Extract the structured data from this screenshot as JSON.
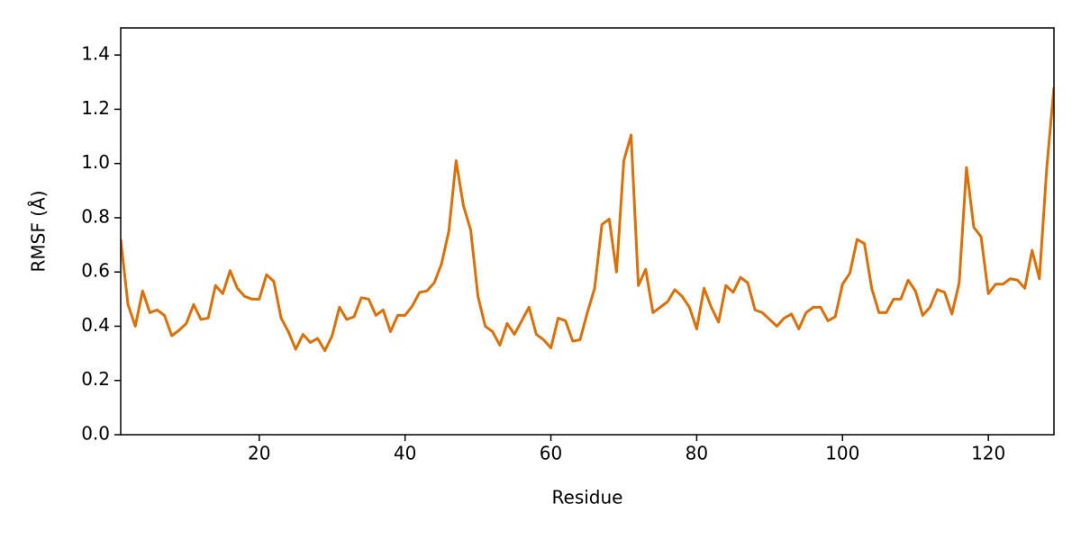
{
  "chart_data": {
    "type": "line",
    "xlabel": "Residue",
    "ylabel": "RMSF (Å)",
    "color": "#d97008",
    "x": [
      1,
      2,
      3,
      4,
      5,
      6,
      7,
      8,
      9,
      10,
      11,
      12,
      13,
      14,
      15,
      16,
      17,
      18,
      19,
      20,
      21,
      22,
      23,
      24,
      25,
      26,
      27,
      28,
      29,
      30,
      31,
      32,
      33,
      34,
      35,
      36,
      37,
      38,
      39,
      40,
      41,
      42,
      43,
      44,
      45,
      46,
      47,
      48,
      49,
      50,
      51,
      52,
      53,
      54,
      55,
      56,
      57,
      58,
      59,
      60,
      61,
      62,
      63,
      64,
      65,
      66,
      67,
      68,
      69,
      70,
      71,
      72,
      73,
      74,
      75,
      76,
      77,
      78,
      79,
      80,
      81,
      82,
      83,
      84,
      85,
      86,
      87,
      88,
      89,
      90,
      91,
      92,
      93,
      94,
      95,
      96,
      97,
      98,
      99,
      100,
      101,
      102,
      103,
      104,
      105,
      106,
      107,
      108,
      109,
      110,
      111,
      112,
      113,
      114,
      115,
      116,
      117,
      118,
      119,
      120,
      121,
      122,
      123,
      124,
      125,
      126,
      127,
      128,
      129
    ],
    "values": [
      0.72,
      0.48,
      0.4,
      0.53,
      0.45,
      0.46,
      0.44,
      0.365,
      0.385,
      0.41,
      0.48,
      0.425,
      0.43,
      0.55,
      0.52,
      0.605,
      0.54,
      0.51,
      0.5,
      0.5,
      0.59,
      0.565,
      0.43,
      0.38,
      0.315,
      0.37,
      0.34,
      0.355,
      0.31,
      0.365,
      0.47,
      0.425,
      0.435,
      0.505,
      0.5,
      0.44,
      0.46,
      0.38,
      0.44,
      0.44,
      0.475,
      0.525,
      0.53,
      0.56,
      0.63,
      0.75,
      1.01,
      0.845,
      0.755,
      0.51,
      0.4,
      0.38,
      0.33,
      0.41,
      0.37,
      0.42,
      0.47,
      0.37,
      0.35,
      0.32,
      0.43,
      0.42,
      0.345,
      0.35,
      0.45,
      0.54,
      0.775,
      0.795,
      0.6,
      1.01,
      1.105,
      0.55,
      0.61,
      0.45,
      0.47,
      0.49,
      0.535,
      0.51,
      0.47,
      0.39,
      0.54,
      0.47,
      0.415,
      0.55,
      0.525,
      0.58,
      0.56,
      0.46,
      0.45,
      0.425,
      0.4,
      0.43,
      0.445,
      0.39,
      0.45,
      0.47,
      0.47,
      0.42,
      0.435,
      0.555,
      0.595,
      0.72,
      0.705,
      0.54,
      0.45,
      0.45,
      0.5,
      0.5,
      0.57,
      0.53,
      0.44,
      0.47,
      0.535,
      0.525,
      0.445,
      0.56,
      0.985,
      0.765,
      0.73,
      0.52,
      0.555,
      0.555,
      0.575,
      0.57,
      0.54,
      0.68,
      0.575,
      0.98,
      1.28
    ],
    "xlim": [
      1,
      129
    ],
    "xticks": [
      20,
      40,
      60,
      80,
      100,
      120
    ],
    "ylim": [
      0,
      1.5
    ],
    "yticks": [
      {
        "value": 0,
        "label": "0.0"
      },
      0.2,
      0.4,
      0.6,
      0.8,
      {
        "value": 1,
        "label": "1.0"
      },
      1.2,
      1.4
    ],
    "grid": false
  }
}
